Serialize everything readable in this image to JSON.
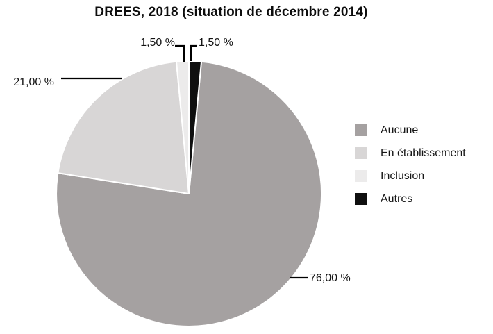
{
  "chart_data": {
    "type": "pie",
    "title": "DREES, 2018 (situation de décembre 2014)",
    "slices": [
      {
        "id": "aucune",
        "label": "Aucune",
        "value": 76.0,
        "display": "76,00 %",
        "color": "#a5a1a1"
      },
      {
        "id": "en-etablissement",
        "label": "En établissement",
        "value": 21.0,
        "display": "21,00 %",
        "color": "#d8d6d6"
      },
      {
        "id": "inclusion",
        "label": "Inclusion",
        "value": 1.5,
        "display": "1,50 %",
        "color": "#ecebeb"
      },
      {
        "id": "autres",
        "label": "Autres",
        "value": 1.5,
        "display": "1,50 %",
        "color": "#0f0f0f"
      }
    ],
    "legend_position": "right",
    "direction": "clockwise",
    "start_angle_deg": 5.4,
    "slice_border_color": "#ffffff",
    "leader_line_color": "#000000",
    "background": "#ffffff"
  }
}
